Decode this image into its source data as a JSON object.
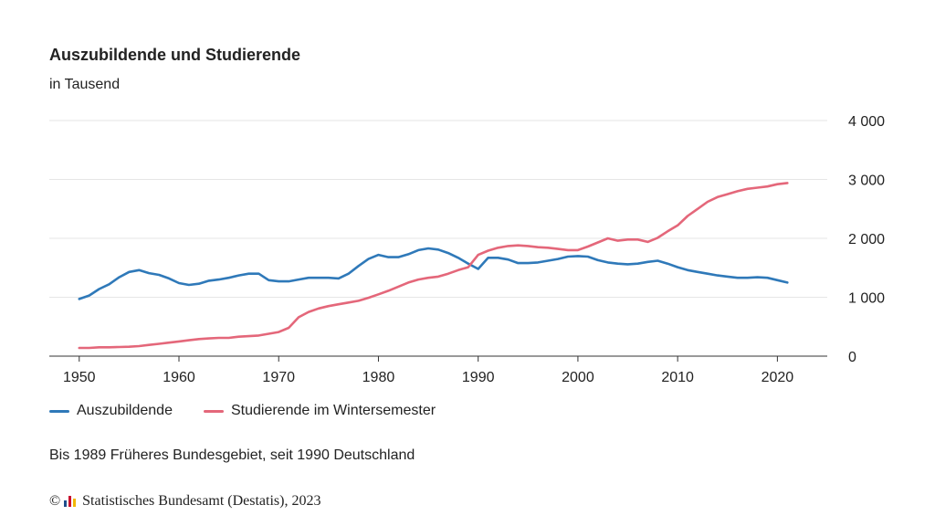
{
  "header": {
    "title": "Auszubildende und Studierende",
    "subtitle": "in Tausend"
  },
  "colors": {
    "series_1": "#2f79b9",
    "series_2": "#e4677a",
    "grid": "#e6e6e6",
    "axis": "#333333"
  },
  "chart_data": {
    "type": "line",
    "title": "Auszubildende und Studierende",
    "subtitle": "in Tausend",
    "xlabel": "",
    "ylabel": "",
    "xlim": [
      1947,
      2025
    ],
    "ylim": [
      0,
      4000
    ],
    "x_ticks": [
      1950,
      1960,
      1970,
      1980,
      1990,
      2000,
      2010,
      2020
    ],
    "y_ticks": [
      0,
      1000,
      2000,
      3000,
      4000
    ],
    "y_tick_labels": [
      "0",
      "1 000",
      "2 000",
      "3 000",
      "4 000"
    ],
    "grid": true,
    "y_axis_position": "right",
    "legend_position": "bottom-left",
    "x": [
      1950,
      1951,
      1952,
      1953,
      1954,
      1955,
      1956,
      1957,
      1958,
      1959,
      1960,
      1961,
      1962,
      1963,
      1964,
      1965,
      1966,
      1967,
      1968,
      1969,
      1970,
      1971,
      1972,
      1973,
      1974,
      1975,
      1976,
      1977,
      1978,
      1979,
      1980,
      1981,
      1982,
      1983,
      1984,
      1985,
      1986,
      1987,
      1988,
      1989,
      1990,
      1991,
      1992,
      1993,
      1994,
      1995,
      1996,
      1997,
      1998,
      1999,
      2000,
      2001,
      2002,
      2003,
      2004,
      2005,
      2006,
      2007,
      2008,
      2009,
      2010,
      2011,
      2012,
      2013,
      2014,
      2015,
      2016,
      2017,
      2018,
      2019,
      2020,
      2021
    ],
    "series": [
      {
        "name": "Auszubildende",
        "color": "#2f79b9",
        "values": [
          970,
          1030,
          1140,
          1220,
          1340,
          1430,
          1460,
          1410,
          1380,
          1320,
          1240,
          1210,
          1230,
          1280,
          1300,
          1330,
          1370,
          1400,
          1400,
          1290,
          1270,
          1270,
          1300,
          1330,
          1330,
          1330,
          1320,
          1400,
          1530,
          1650,
          1720,
          1680,
          1680,
          1730,
          1800,
          1830,
          1810,
          1750,
          1670,
          1570,
          1480,
          1670,
          1670,
          1640,
          1580,
          1580,
          1590,
          1620,
          1650,
          1690,
          1700,
          1690,
          1630,
          1590,
          1570,
          1560,
          1570,
          1600,
          1620,
          1570,
          1510,
          1460,
          1430,
          1400,
          1370,
          1350,
          1330,
          1330,
          1340,
          1330,
          1290,
          1250
        ]
      },
      {
        "name": "Studierende im Wintersemester",
        "color": "#e4677a",
        "values": [
          140,
          140,
          150,
          150,
          155,
          160,
          170,
          190,
          210,
          230,
          250,
          270,
          290,
          300,
          310,
          310,
          330,
          340,
          350,
          380,
          410,
          480,
          660,
          750,
          810,
          850,
          880,
          910,
          940,
          990,
          1050,
          1110,
          1180,
          1250,
          1300,
          1330,
          1350,
          1400,
          1460,
          1510,
          1720,
          1790,
          1840,
          1870,
          1880,
          1870,
          1850,
          1840,
          1820,
          1800,
          1800,
          1860,
          1930,
          2000,
          1960,
          1980,
          1980,
          1940,
          2010,
          2120,
          2220,
          2380,
          2500,
          2620,
          2700,
          2750,
          2800,
          2840,
          2860,
          2880,
          2920,
          2940
        ]
      }
    ]
  },
  "legend": {
    "items": [
      {
        "label": "Auszubildende"
      },
      {
        "label": "Studierende im Wintersemester"
      }
    ]
  },
  "footnote": "Bis 1989 Früheres Bundesgebiet, seit 1990 Deutschland",
  "source": {
    "copyright_symbol": "©",
    "text": "Statistisches Bundesamt (Destatis), 2023",
    "logo_icon": "destatis-bars-icon"
  }
}
